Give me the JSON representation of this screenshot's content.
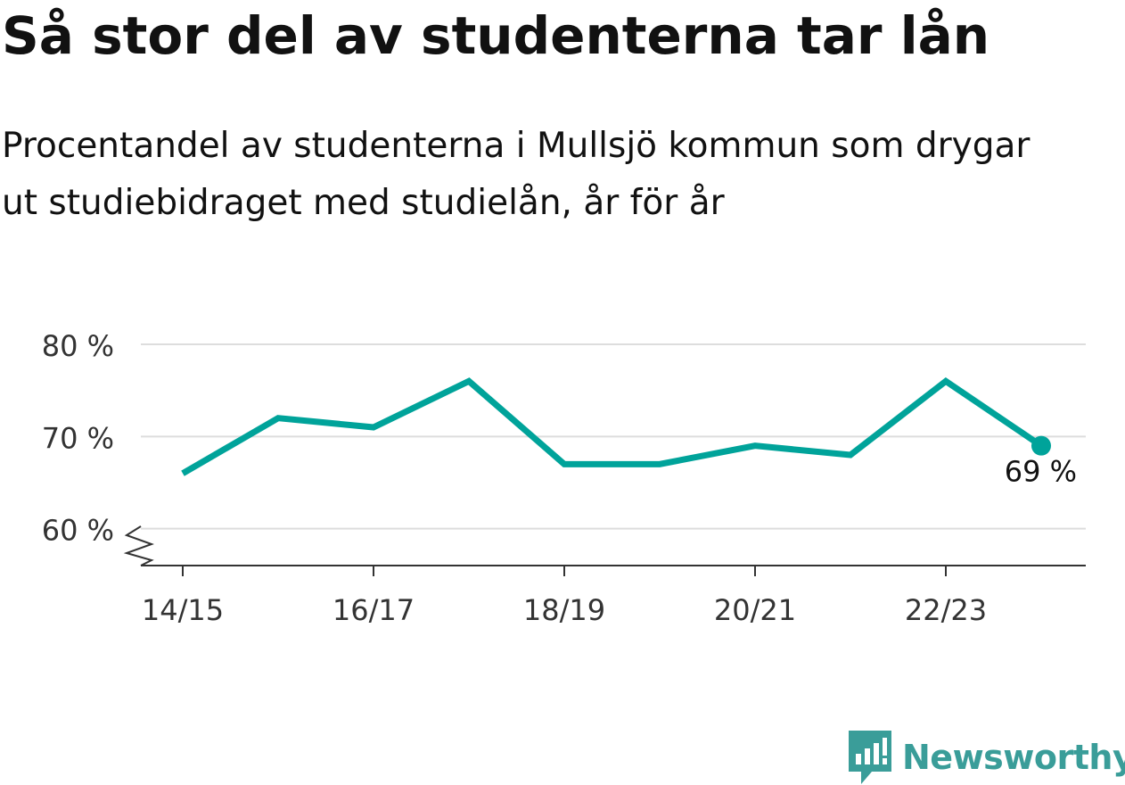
{
  "header": {
    "title": "Så stor del av studenterna tar lån",
    "subtitle": "Procentandel av studenterna i Mullsjö kommun som drygar ut studiebidraget med studielån, år för år"
  },
  "branding": {
    "logo_text": "Newsworthy",
    "logo_icon": "newsworthy-chart-bubble-icon",
    "logo_color": "#3a9d99"
  },
  "colors": {
    "line": "#00a39a",
    "grid": "#dddddd",
    "axis": "#333333",
    "text": "#333333"
  },
  "chart_data": {
    "type": "line",
    "x": [
      "14/15",
      "15/16",
      "16/17",
      "17/18",
      "18/19",
      "19/20",
      "20/21",
      "21/22",
      "22/23",
      "23/24"
    ],
    "values": [
      66,
      72,
      71,
      76,
      67,
      67,
      69,
      68,
      76,
      69
    ],
    "x_tick_labels": [
      "14/15",
      "16/17",
      "18/19",
      "20/21",
      "22/23"
    ],
    "y_ticks": [
      60,
      70,
      80
    ],
    "y_tick_labels": [
      "60 %",
      "70 %",
      "80 %"
    ],
    "ylim": [
      56,
      80
    ],
    "y_axis_break": true,
    "grid": true,
    "last_point_label": "69 %",
    "xlabel": "",
    "ylabel": ""
  }
}
